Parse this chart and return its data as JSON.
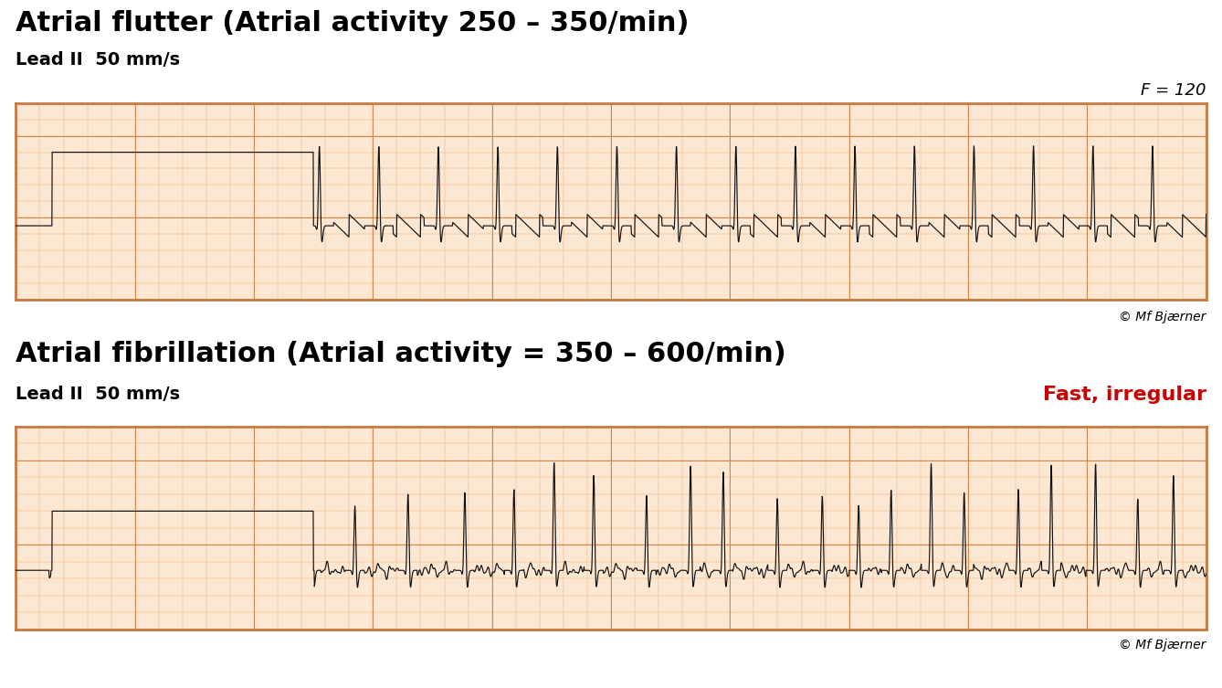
{
  "title1": "Atrial flutter (Atrial activity 250 – 350/min)",
  "title2": "Atrial fibrillation (Atrial activity = 350 – 600/min)",
  "lead_label": "Lead II  50 mm/s",
  "annotation1": "F = 120",
  "annotation2": "Fast, irregular",
  "annotation2_color": "#cc0000",
  "bg_color": "#ffffff",
  "ecg_bg": "#fce8d2",
  "ecg_grid_minor": "#f0a870",
  "ecg_grid_major": "#d4854a",
  "ecg_border": "#c87840",
  "ecg_line_color": "#111111",
  "title_fontsize": 22,
  "lead_fontsize": 14,
  "annot_fontsize": 13,
  "copyright_fontsize": 10
}
